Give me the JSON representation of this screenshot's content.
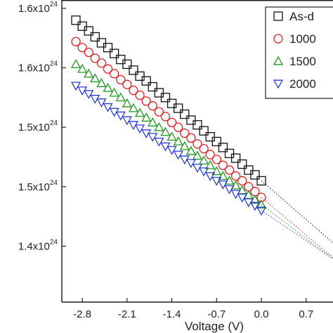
{
  "chart_data": {
    "type": "scatter",
    "x_label": "Voltage (V)",
    "xlim": [
      -3.12,
      1.12
    ],
    "ylim": [
      1.378e+24,
      1.632e+24
    ],
    "xticks": [
      -2.8,
      -2.1,
      -1.4,
      -0.7,
      {
        "value": 0,
        "label": "0.0"
      },
      0.7
    ],
    "yticks": [
      {
        "value": 1.625e+24,
        "label": "1.6x10",
        "label_sup": "24"
      },
      {
        "value": 1.575e+24,
        "label": "1.6x10",
        "label_sup": "24"
      },
      {
        "value": 1.525e+24,
        "label": "1.5x10",
        "label_sup": "24"
      },
      {
        "value": 1.475e+24,
        "label": "1.5x10",
        "label_sup": "24"
      },
      {
        "value": 1.425e+24,
        "label": "1.4x10",
        "label_sup": "24"
      }
    ],
    "grid": false,
    "legend": "top-right",
    "fit_lines": "dotted",
    "x": [
      -2.9,
      -2.8,
      -2.7,
      -2.6,
      -2.5,
      -2.4,
      -2.3,
      -2.2,
      -2.1,
      -2.0,
      -1.9,
      -1.8,
      -1.7,
      -1.6,
      -1.5,
      -1.4,
      -1.3,
      -1.2,
      -1.1,
      -1.0,
      -0.9,
      -0.8,
      -0.7,
      -0.6,
      -0.5,
      -0.4,
      -0.3,
      -0.2,
      -0.1,
      0
    ],
    "series": [
      {
        "name": "As-d",
        "color": "#111111",
        "marker": "square",
        "values": [
          1.615e+24,
          1.61e+24,
          1.606e+24,
          1.601e+24,
          1.596e+24,
          1.592e+24,
          1.587e+24,
          1.582e+24,
          1.578e+24,
          1.573e+24,
          1.568e+24,
          1.564e+24,
          1.559e+24,
          1.554e+24,
          1.55e+24,
          1.545e+24,
          1.541e+24,
          1.536e+24,
          1.531e+24,
          1.527e+24,
          1.522e+24,
          1.517e+24,
          1.513e+24,
          1.508e+24,
          1.503e+24,
          1.499e+24,
          1.494e+24,
          1.489e+24,
          1.485e+24,
          1.48e+24
        ]
      },
      {
        "name": "1000",
        "color": "#e02020",
        "marker": "circle",
        "values": [
          1.597e+24,
          1.592e+24,
          1.588e+24,
          1.583e+24,
          1.579e+24,
          1.574e+24,
          1.57e+24,
          1.565e+24,
          1.561e+24,
          1.556e+24,
          1.552e+24,
          1.547e+24,
          1.543e+24,
          1.538e+24,
          1.534e+24,
          1.529e+24,
          1.525e+24,
          1.52e+24,
          1.516e+24,
          1.511e+24,
          1.507e+24,
          1.502e+24,
          1.498e+24,
          1.493e+24,
          1.489e+24,
          1.484e+24,
          1.48e+24,
          1.475e+24,
          1.471e+24,
          1.466e+24
        ]
      },
      {
        "name": "1500",
        "color": "#1f9a1f",
        "marker": "triangle-up",
        "values": [
          1.578e+24,
          1.574e+24,
          1.57e+24,
          1.566e+24,
          1.562e+24,
          1.558e+24,
          1.554e+24,
          1.55e+24,
          1.545e+24,
          1.541e+24,
          1.537e+24,
          1.533e+24,
          1.529e+24,
          1.525e+24,
          1.521e+24,
          1.517e+24,
          1.513e+24,
          1.509e+24,
          1.505e+24,
          1.501e+24,
          1.497e+24,
          1.493e+24,
          1.488e+24,
          1.484e+24,
          1.48e+24,
          1.476e+24,
          1.472e+24,
          1.468e+24,
          1.464e+24,
          1.46e+24
        ]
      },
      {
        "name": "2000",
        "color": "#2b3fd6",
        "marker": "triangle-down",
        "values": [
          1.56e+24,
          1.556e+24,
          1.553e+24,
          1.549e+24,
          1.546e+24,
          1.542e+24,
          1.538e+24,
          1.535e+24,
          1.531e+24,
          1.527e+24,
          1.524e+24,
          1.52e+24,
          1.517e+24,
          1.513e+24,
          1.509e+24,
          1.506e+24,
          1.502e+24,
          1.498e+24,
          1.495e+24,
          1.491e+24,
          1.488e+24,
          1.484e+24,
          1.48e+24,
          1.477e+24,
          1.473e+24,
          1.469e+24,
          1.466e+24,
          1.462e+24,
          1.459e+24,
          1.455e+24
        ]
      }
    ]
  }
}
